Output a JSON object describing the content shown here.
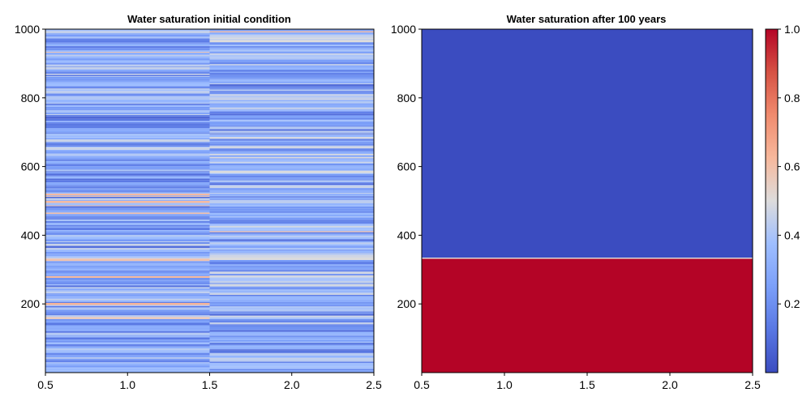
{
  "chart_data": [
    {
      "type": "heatmap",
      "title": "Water saturation initial condition",
      "xlim": [
        0.5,
        2.5
      ],
      "ylim": [
        0,
        1000
      ],
      "x_ticks": [
        "0.5",
        "1.0",
        "1.5",
        "2.0",
        "2.5"
      ],
      "y_ticks": [
        "200",
        "400",
        "600",
        "800",
        "1000"
      ],
      "columns": [
        {
          "x_range": [
            0.5,
            1.5
          ],
          "mean_saturation": 0.3
        },
        {
          "x_range": [
            1.5,
            2.5
          ],
          "mean_saturation": 0.33
        }
      ],
      "colormap": "coolwarm",
      "description_values": "thin horizontal layers, saturation mostly 0.15-0.55"
    },
    {
      "type": "heatmap",
      "title": "Water saturation after 100 years",
      "xlim": [
        0.5,
        2.5
      ],
      "ylim": [
        0,
        1000
      ],
      "x_ticks": [
        "0.5",
        "1.0",
        "1.5",
        "2.0",
        "2.5"
      ],
      "y_ticks": [
        "200",
        "400",
        "600",
        "800",
        "1000"
      ],
      "regions": [
        {
          "y_range": [
            0,
            333
          ],
          "saturation": 1.0
        },
        {
          "y_range": [
            333,
            1000
          ],
          "saturation": 0.0
        }
      ],
      "colormap": "coolwarm"
    }
  ],
  "colorbar": {
    "range": [
      0.0,
      1.0
    ],
    "ticks": [
      "0.2",
      "0.4",
      "0.6",
      "0.8",
      "1.0"
    ],
    "colors": {
      "low": "#3b4cc0",
      "mid": "#dddddd",
      "high": "#b40426"
    }
  }
}
